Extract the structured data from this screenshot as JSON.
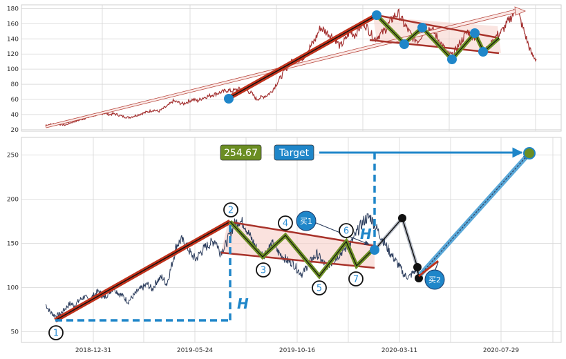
{
  "chart_data": [
    {
      "type": "line",
      "panel": "top",
      "ylim": [
        18,
        185
      ],
      "yticks": [
        20,
        40,
        60,
        80,
        100,
        120,
        140,
        160,
        180
      ],
      "xlim": [
        0,
        820
      ],
      "series": [
        {
          "values": [
            26,
            27,
            28,
            27,
            26,
            29,
            31,
            33,
            35,
            37,
            39,
            41,
            42,
            40,
            41,
            39,
            37,
            36,
            38,
            40,
            42,
            44,
            46,
            44,
            48,
            52,
            58,
            56,
            54,
            57,
            60,
            58,
            62,
            64,
            66,
            68,
            70,
            72,
            71,
            73,
            74,
            72,
            68,
            60,
            63,
            65,
            70,
            80,
            90,
            100,
            110,
            108,
            112,
            120,
            130,
            140,
            155,
            150,
            145,
            140,
            130,
            138,
            150,
            145,
            155,
            160,
            150,
            140,
            145,
            150,
            160,
            170,
            173,
            160,
            150,
            140,
            138,
            150,
            155,
            150,
            140,
            130,
            120,
            118,
            130,
            140,
            150,
            145,
            140,
            130,
            125,
            135,
            145,
            150,
            160,
            170,
            180,
            160,
            140,
            120,
            113
          ]
        }
      ],
      "color": "#a33030"
    },
    {
      "type": "line",
      "panel": "bottom",
      "ylim": [
        38,
        270
      ],
      "yticks": [
        50,
        100,
        150,
        200,
        250
      ],
      "xticks": [
        "2018-12-31",
        "2019-05-24",
        "2019-10-16",
        "2020-03-11",
        "2020-07-29"
      ],
      "xlim": [
        0,
        820
      ],
      "series": [
        {
          "values": [
            81,
            72,
            68,
            70,
            76,
            82,
            80,
            86,
            90,
            85,
            92,
            96,
            88,
            94,
            100,
            94,
            90,
            84,
            90,
            96,
            100,
            104,
            98,
            108,
            112,
            104,
            125,
            148,
            154,
            148,
            138,
            132,
            140,
            146,
            150,
            154,
            140,
            146,
            160,
            172,
            176,
            172,
            160,
            150,
            140,
            137,
            145,
            150,
            140,
            135,
            130,
            128,
            120,
            115,
            125,
            132,
            138,
            130,
            124,
            128,
            134,
            140,
            145,
            150,
            160,
            170,
            178,
            180,
            170,
            160,
            150,
            140,
            132,
            124,
            114,
            112,
            118,
            122
          ]
        }
      ],
      "color": "#2d3e5e"
    }
  ],
  "annotations": {
    "price_label": "254.67",
    "target_label": "Target",
    "height_label": "H",
    "buy1_label": "买1",
    "buy2_label": "买2",
    "point_labels": [
      "1",
      "2",
      "3",
      "4",
      "5",
      "6",
      "7"
    ]
  },
  "colors": {
    "trend": "#c0321c",
    "zigzag": "#6b8e23",
    "channel": "#a8322a",
    "marker": "#1f86c9",
    "guide": "#1f86c9",
    "price_box": "#6b8e23",
    "target_box": "#1f86c9"
  }
}
